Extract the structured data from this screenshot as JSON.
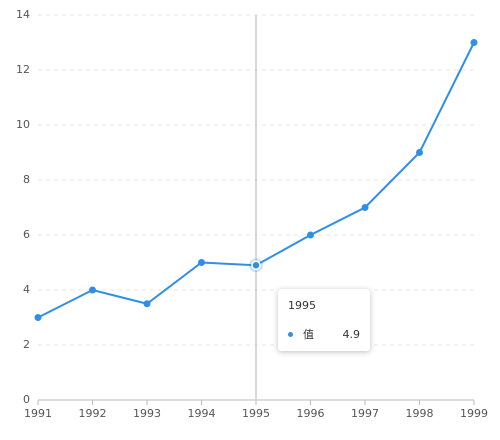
{
  "chart_data": {
    "type": "line",
    "categories": [
      "1991",
      "1992",
      "1993",
      "1994",
      "1995",
      "1996",
      "1997",
      "1998",
      "1999"
    ],
    "series": [
      {
        "name": "值",
        "color": "#2f8fe8",
        "values": [
          3,
          4,
          3.5,
          5,
          4.9,
          6,
          7,
          9,
          13
        ]
      }
    ],
    "ylim": [
      0,
      14
    ],
    "yticks": [
      0,
      2,
      4,
      6,
      8,
      10,
      12,
      14
    ],
    "grid": true
  }
}
